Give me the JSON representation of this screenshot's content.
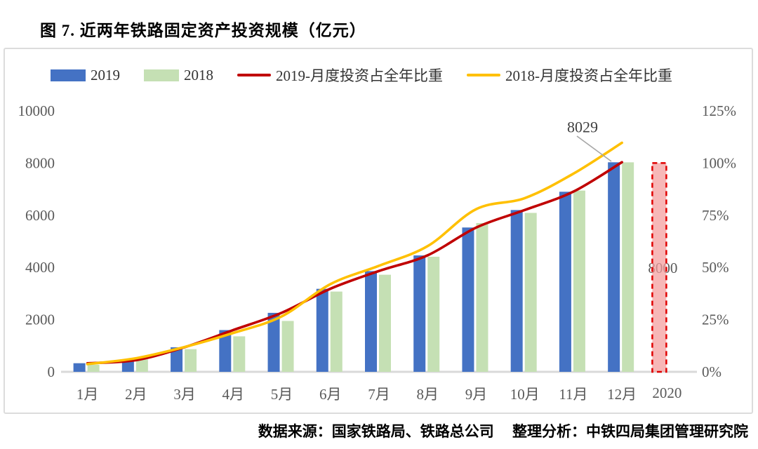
{
  "page": {
    "title": "图 7. 近两年铁路固定资产投资规模（亿元）",
    "footer": "数据来源：国家铁路局、铁路总公司　 整理分析：中铁四局集团管理研究院"
  },
  "colors": {
    "bar_2019": "#4472C4",
    "bar_2018": "#C5E0B4",
    "line_2019": "#C00000",
    "line_2018": "#FFC000",
    "forecast_fill": "#F49B9B",
    "forecast_border": "#E00000",
    "axis_text": "#595959",
    "baseline": "#d9d9d9",
    "leader": "#a6a6a6",
    "annotation_text": "#404040"
  },
  "chart_data": {
    "type": "bar",
    "subtype": "combo bar+line, dual axis",
    "title": "图 7. 近两年铁路固定资产投资规模（亿元）",
    "categories": [
      "1月",
      "2月",
      "3月",
      "4月",
      "5月",
      "6月",
      "7月",
      "8月",
      "9月",
      "10月",
      "11月",
      "12月"
    ],
    "forecast_category": "2020",
    "bar_series": [
      {
        "name": "2019",
        "color": "#4472C4",
        "values": [
          330,
          450,
          940,
          1600,
          2260,
          3180,
          3860,
          4460,
          5530,
          6200,
          6900,
          8029
        ]
      },
      {
        "name": "2018",
        "color": "#C5E0B4",
        "values": [
          270,
          476,
          870,
          1360,
          1950,
          3075,
          3720,
          4410,
          5700,
          6090,
          6945,
          8028
        ]
      }
    ],
    "line_series": [
      {
        "name": "2019-月度投资占全年比重",
        "color": "#C00000",
        "values_pct": [
          4.1,
          5.6,
          11.8,
          20.0,
          28.3,
          39.8,
          48.3,
          55.8,
          69.1,
          77.5,
          86.3,
          100.4
        ]
      },
      {
        "name": "2018-月度投资占全年比重",
        "color": "#FFC000",
        "values_pct": [
          3.7,
          6.5,
          11.9,
          18.6,
          26.6,
          42.0,
          50.8,
          60.2,
          77.9,
          83.2,
          94.9,
          109.7
        ]
      }
    ],
    "forecast_bar": {
      "category": "2020",
      "value": 8000,
      "label": "8000"
    },
    "annotation": {
      "label": "8029",
      "series": "2019",
      "category": "12月",
      "value": 8029
    },
    "left_axis": {
      "ticks": [
        "0",
        "2000",
        "4000",
        "6000",
        "8000",
        "10000"
      ],
      "min": 0,
      "max": 10000
    },
    "right_axis": {
      "ticks": [
        "0%",
        "25%",
        "50%",
        "75%",
        "100%",
        "125%"
      ],
      "min": 0,
      "max": 125
    },
    "legend_position": "top",
    "grid": false
  }
}
